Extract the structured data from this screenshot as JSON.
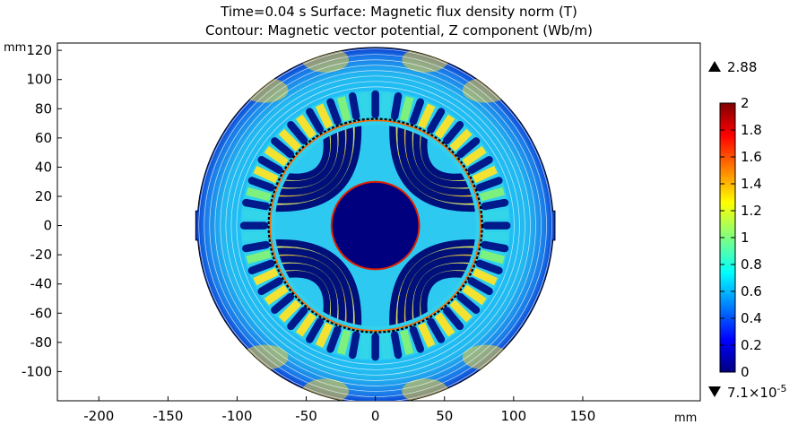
{
  "chart_data": {
    "type": "heatmap",
    "title": "Time=0.04 s   Surface: Magnetic flux density norm (T)",
    "subtitle": "Contour: Magnetic vector potential, Z component (Wb/m)",
    "x_unit": "mm",
    "y_unit": "mm",
    "xlim": [
      -230,
      235
    ],
    "ylim": [
      -120,
      125
    ],
    "x_ticks": [
      "-200",
      "-150",
      "-100",
      "-50",
      "0",
      "50",
      "100",
      "150"
    ],
    "y_ticks": [
      "120",
      "100",
      "80",
      "60",
      "40",
      "20",
      "0",
      "-20",
      "-40",
      "-60",
      "-80",
      "-100"
    ],
    "colorbar": {
      "min": 0,
      "max": 2,
      "ticks": [
        "2",
        "1.8",
        "1.6",
        "1.4",
        "1.2",
        "1",
        "0.8",
        "0.6",
        "0.4",
        "0.2",
        "0"
      ],
      "max_value_label": "2.88",
      "min_value_label": "7.1×10",
      "min_value_exponent": "-5"
    },
    "geometry_mm": {
      "stator_outer_radius": 122,
      "stator_flat_x": 123,
      "stator_inner_radius": 91,
      "stator_slot_count": 36,
      "air_gap_radius": 73,
      "rotor_outer_radius": 72,
      "rotor_slot_count": 28,
      "shaft_radius": 30
    },
    "colors": {
      "low": "#00007f",
      "mid": "#00ffff",
      "high": "#ffff00",
      "max": "#7f0000",
      "outline": "#000000"
    }
  }
}
